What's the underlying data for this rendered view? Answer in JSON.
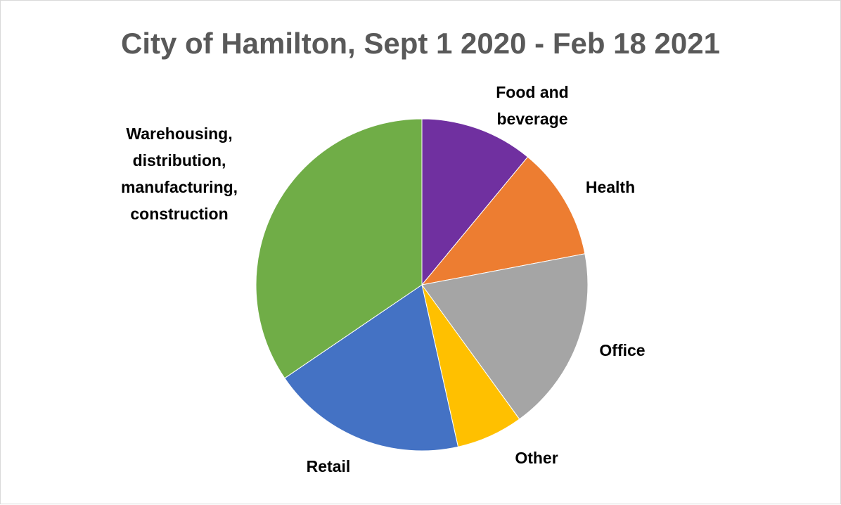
{
  "chart_data": {
    "type": "pie",
    "title": "City of Hamilton, Sept 1 2020 - Feb 18 2021",
    "start_angle_deg": 0,
    "direction": "clockwise",
    "legend": "none",
    "slices": [
      {
        "name": "Food and beverage",
        "value": 11,
        "color": "#7030A0"
      },
      {
        "name": "Health",
        "value": 11,
        "color": "#ED7D31"
      },
      {
        "name": "Office",
        "value": 18,
        "color": "#A5A5A5"
      },
      {
        "name": "Other",
        "value": 6.5,
        "color": "#FFC000"
      },
      {
        "name": "Retail",
        "value": 19,
        "color": "#4472C4"
      },
      {
        "name": "Warehousing, distribution, manufacturing, construction",
        "value": 34.5,
        "color": "#70AD47"
      }
    ]
  }
}
